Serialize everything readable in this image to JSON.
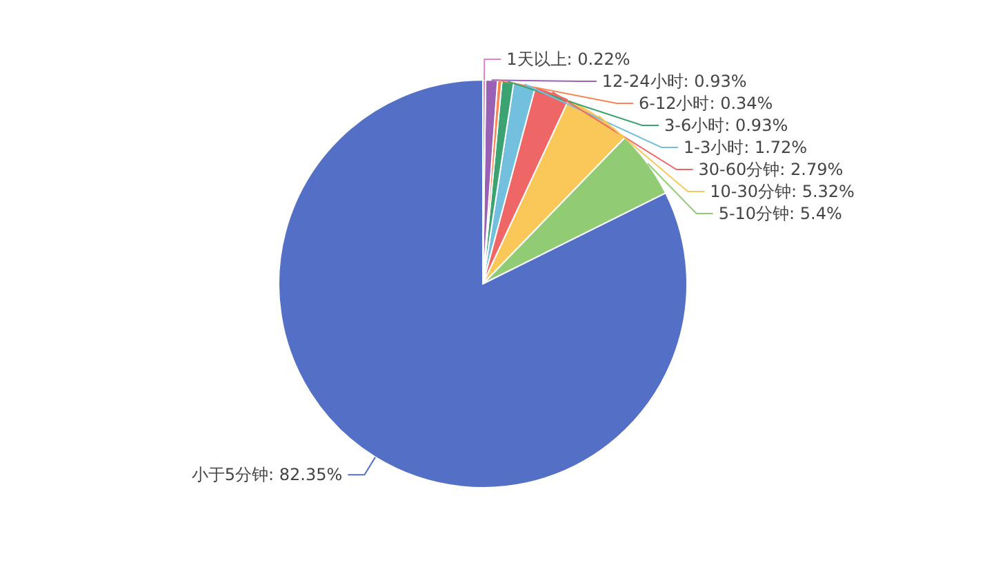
{
  "chart_data": {
    "type": "pie",
    "value_labels": [
      ": 82.35%",
      ": 5.4%",
      ": 5.32%",
      ": 2.79%",
      ": 1.72%",
      ": 0.93%",
      ": 0.34%",
      ": 0.93%",
      ": 0.22%"
    ],
    "categories": [
      "小于5分钟",
      "5-10分钟",
      "10-30分钟",
      "30-60分钟",
      "1-3小时",
      "3-6小时",
      "6-12小时",
      "12-24小时",
      "1天以上"
    ],
    "values": [
      82.35,
      5.4,
      5.32,
      2.79,
      1.72,
      0.93,
      0.34,
      0.93,
      0.22
    ],
    "colors": [
      "#5470c6",
      "#91cc75",
      "#fac858",
      "#ee6666",
      "#73c0de",
      "#3ba272",
      "#fc8452",
      "#9a60b4",
      "#ea7ccc"
    ]
  }
}
